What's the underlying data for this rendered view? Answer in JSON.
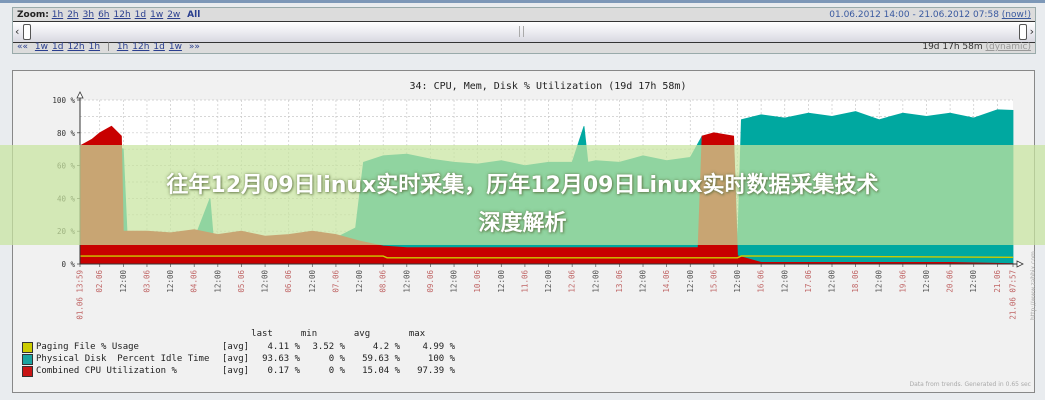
{
  "zoom_bar": {
    "label": "Zoom:",
    "options": [
      "1h",
      "2h",
      "3h",
      "6h",
      "12h",
      "1d",
      "1w",
      "2w"
    ],
    "selected": "All",
    "period_from": "01.06.2012 14:00",
    "period_sep": "-",
    "period_to": "21.06.2012 07:58",
    "now": "(now!)",
    "nav_back": "«",
    "nav_fwd": "»»",
    "nav_back_prefix": "««",
    "nav_back_options": [
      "1w",
      "1d",
      "12h",
      "1h"
    ],
    "nav_sep": "|",
    "nav_fwd_options": [
      "1h",
      "12h",
      "1d",
      "1w"
    ],
    "duration": "19d 17h 58m",
    "mode": "(dynamic)"
  },
  "chart_data": {
    "type": "area",
    "title": "34: CPU, Mem, Disk % Utilization (19d 17h 58m)",
    "xlim": [
      "2012-06-01 13:59",
      "2012-06-21 07:57"
    ],
    "ylim": [
      0,
      100
    ],
    "y_ticks": [
      "0 %",
      "20 %",
      "40 %",
      "60 %",
      "80 %",
      "100 %"
    ],
    "grid": true,
    "x_ticks": [
      {
        "label": "01.06 13:59",
        "time": "2012-06-01 13:59",
        "kind": "date"
      },
      {
        "label": "02.06",
        "time": "2012-06-02 00:00",
        "kind": "date"
      },
      {
        "label": "12:00",
        "time": "2012-06-02 12:00",
        "kind": "time"
      },
      {
        "label": "03.06",
        "time": "2012-06-03 00:00",
        "kind": "date"
      },
      {
        "label": "12:00",
        "time": "2012-06-03 12:00",
        "kind": "time"
      },
      {
        "label": "04.06",
        "time": "2012-06-04 00:00",
        "kind": "date"
      },
      {
        "label": "12:00",
        "time": "2012-06-04 12:00",
        "kind": "time"
      },
      {
        "label": "05.06",
        "time": "2012-06-05 00:00",
        "kind": "date"
      },
      {
        "label": "12:00",
        "time": "2012-06-05 12:00",
        "kind": "time"
      },
      {
        "label": "06.06",
        "time": "2012-06-06 00:00",
        "kind": "date"
      },
      {
        "label": "12:00",
        "time": "2012-06-06 12:00",
        "kind": "time"
      },
      {
        "label": "07.06",
        "time": "2012-06-07 00:00",
        "kind": "date"
      },
      {
        "label": "12:00",
        "time": "2012-06-07 12:00",
        "kind": "time"
      },
      {
        "label": "08.06",
        "time": "2012-06-08 00:00",
        "kind": "date"
      },
      {
        "label": "12:00",
        "time": "2012-06-08 12:00",
        "kind": "time"
      },
      {
        "label": "09.06",
        "time": "2012-06-09 00:00",
        "kind": "date"
      },
      {
        "label": "12:00",
        "time": "2012-06-09 12:00",
        "kind": "time"
      },
      {
        "label": "10.06",
        "time": "2012-06-10 00:00",
        "kind": "date"
      },
      {
        "label": "12:00",
        "time": "2012-06-10 12:00",
        "kind": "time"
      },
      {
        "label": "11.06",
        "time": "2012-06-11 00:00",
        "kind": "date"
      },
      {
        "label": "12:00",
        "time": "2012-06-11 12:00",
        "kind": "time"
      },
      {
        "label": "12.06",
        "time": "2012-06-12 00:00",
        "kind": "date"
      },
      {
        "label": "12:00",
        "time": "2012-06-12 12:00",
        "kind": "time"
      },
      {
        "label": "13.06",
        "time": "2012-06-13 00:00",
        "kind": "date"
      },
      {
        "label": "12:00",
        "time": "2012-06-13 12:00",
        "kind": "time"
      },
      {
        "label": "14.06",
        "time": "2012-06-14 00:00",
        "kind": "date"
      },
      {
        "label": "12:00",
        "time": "2012-06-14 12:00",
        "kind": "time"
      },
      {
        "label": "15.06",
        "time": "2012-06-15 00:00",
        "kind": "date"
      },
      {
        "label": "12:00",
        "time": "2012-06-15 12:00",
        "kind": "time"
      },
      {
        "label": "16.06",
        "time": "2012-06-16 00:00",
        "kind": "date"
      },
      {
        "label": "12:00",
        "time": "2012-06-16 12:00",
        "kind": "time"
      },
      {
        "label": "17.06",
        "time": "2012-06-17 00:00",
        "kind": "date"
      },
      {
        "label": "12:00",
        "time": "2012-06-17 12:00",
        "kind": "time"
      },
      {
        "label": "18.06",
        "time": "2012-06-18 00:00",
        "kind": "date"
      },
      {
        "label": "12:00",
        "time": "2012-06-18 12:00",
        "kind": "time"
      },
      {
        "label": "19.06",
        "time": "2012-06-19 00:00",
        "kind": "date"
      },
      {
        "label": "12:00",
        "time": "2012-06-19 12:00",
        "kind": "time"
      },
      {
        "label": "20.06",
        "time": "2012-06-20 00:00",
        "kind": "date"
      },
      {
        "label": "12:00",
        "time": "2012-06-20 12:00",
        "kind": "time"
      },
      {
        "label": "21.06",
        "time": "2012-06-21 00:00",
        "kind": "date"
      },
      {
        "label": "21.06 07:57",
        "time": "2012-06-21 07:57",
        "kind": "date"
      }
    ],
    "series": [
      {
        "name": "Physical Disk  Percent Idle Time",
        "color": "#00a8a0",
        "style": "area",
        "points": [
          [
            "2012-06-01 13:59",
            70
          ],
          [
            "2012-06-01 20:00",
            66
          ],
          [
            "2012-06-02 00:00",
            72
          ],
          [
            "2012-06-02 06:00",
            74
          ],
          [
            "2012-06-02 12:00",
            70
          ],
          [
            "2012-06-02 14:00",
            16
          ],
          [
            "2012-06-03 00:00",
            14
          ],
          [
            "2012-06-03 12:00",
            12
          ],
          [
            "2012-06-04 00:00",
            15
          ],
          [
            "2012-06-04 08:00",
            40
          ],
          [
            "2012-06-04 10:00",
            12
          ],
          [
            "2012-06-04 12:00",
            12
          ],
          [
            "2012-06-05 00:00",
            14
          ],
          [
            "2012-06-05 12:00",
            10
          ],
          [
            "2012-06-06 00:00",
            12
          ],
          [
            "2012-06-06 12:00",
            14
          ],
          [
            "2012-06-07 00:00",
            16
          ],
          [
            "2012-06-07 10:00",
            22
          ],
          [
            "2012-06-07 14:00",
            62
          ],
          [
            "2012-06-08 00:00",
            66
          ],
          [
            "2012-06-08 12:00",
            67
          ],
          [
            "2012-06-09 00:00",
            64
          ],
          [
            "2012-06-09 12:00",
            62
          ],
          [
            "2012-06-10 00:00",
            61
          ],
          [
            "2012-06-10 12:00",
            63
          ],
          [
            "2012-06-11 00:00",
            60
          ],
          [
            "2012-06-11 12:00",
            62
          ],
          [
            "2012-06-12 00:00",
            62
          ],
          [
            "2012-06-12 06:00",
            84
          ],
          [
            "2012-06-12 08:00",
            62
          ],
          [
            "2012-06-12 12:00",
            63
          ],
          [
            "2012-06-13 00:00",
            62
          ],
          [
            "2012-06-13 12:00",
            66
          ],
          [
            "2012-06-14 00:00",
            63
          ],
          [
            "2012-06-14 12:00",
            65
          ],
          [
            "2012-06-14 18:00",
            78
          ],
          [
            "2012-06-15 00:00",
            79
          ],
          [
            "2012-06-15 10:00",
            77
          ],
          [
            "2012-06-15 12:00",
            10
          ],
          [
            "2012-06-15 14:00",
            88
          ],
          [
            "2012-06-16 00:00",
            91
          ],
          [
            "2012-06-16 12:00",
            89
          ],
          [
            "2012-06-17 00:00",
            92
          ],
          [
            "2012-06-17 12:00",
            90
          ],
          [
            "2012-06-18 00:00",
            93
          ],
          [
            "2012-06-18 12:00",
            88
          ],
          [
            "2012-06-19 00:00",
            92
          ],
          [
            "2012-06-19 12:00",
            90
          ],
          [
            "2012-06-20 00:00",
            92
          ],
          [
            "2012-06-20 12:00",
            89
          ],
          [
            "2012-06-21 00:00",
            94
          ],
          [
            "2012-06-21 07:57",
            93.63
          ]
        ]
      },
      {
        "name": "Combined CPU Utilization %",
        "color": "#c80000",
        "style": "area",
        "points": [
          [
            "2012-06-01 13:59",
            72
          ],
          [
            "2012-06-01 20:00",
            76
          ],
          [
            "2012-06-02 00:00",
            80
          ],
          [
            "2012-06-02 06:00",
            84
          ],
          [
            "2012-06-02 11:00",
            78
          ],
          [
            "2012-06-02 12:00",
            20
          ],
          [
            "2012-06-03 00:00",
            20
          ],
          [
            "2012-06-03 12:00",
            19
          ],
          [
            "2012-06-04 00:00",
            21
          ],
          [
            "2012-06-04 12:00",
            18
          ],
          [
            "2012-06-05 00:00",
            20
          ],
          [
            "2012-06-05 12:00",
            17
          ],
          [
            "2012-06-06 00:00",
            18
          ],
          [
            "2012-06-06 12:00",
            20
          ],
          [
            "2012-06-07 00:00",
            18
          ],
          [
            "2012-06-07 12:00",
            14
          ],
          [
            "2012-06-08 00:00",
            11
          ],
          [
            "2012-06-08 12:00",
            10
          ],
          [
            "2012-06-09 00:00",
            10
          ],
          [
            "2012-06-10 00:00",
            10
          ],
          [
            "2012-06-11 00:00",
            10
          ],
          [
            "2012-06-12 00:00",
            10
          ],
          [
            "2012-06-13 00:00",
            10
          ],
          [
            "2012-06-14 00:00",
            10
          ],
          [
            "2012-06-14 16:00",
            10
          ],
          [
            "2012-06-14 18:00",
            78
          ],
          [
            "2012-06-15 00:00",
            80
          ],
          [
            "2012-06-15 10:00",
            78
          ],
          [
            "2012-06-15 12:00",
            5
          ],
          [
            "2012-06-16 00:00",
            1
          ],
          [
            "2012-06-18 00:00",
            1
          ],
          [
            "2012-06-20 00:00",
            1
          ],
          [
            "2012-06-21 07:57",
            0.17
          ]
        ]
      },
      {
        "name": "Paging File % Usage",
        "color": "#cccc00",
        "style": "line",
        "points": [
          [
            "2012-06-01 13:59",
            4.8
          ],
          [
            "2012-06-08 00:00",
            4.8
          ],
          [
            "2012-06-08 02:00",
            3.8
          ],
          [
            "2012-06-15 12:00",
            3.8
          ],
          [
            "2012-06-15 14:00",
            4.9
          ],
          [
            "2012-06-21 07:57",
            4.11
          ]
        ]
      }
    ],
    "legend": {
      "headers": [
        "last",
        "min",
        "avg",
        "max"
      ],
      "rows": [
        {
          "name": "Paging File % Usage",
          "color": "#cccc00",
          "func": "[avg]",
          "last": "4.11 %",
          "min": "3.52 %",
          "avg": "4.2 %",
          "max": "4.99 %"
        },
        {
          "name": "Physical Disk  Percent Idle Time",
          "color": "#1aa3a0",
          "func": "[avg]",
          "last": "93.63 %",
          "min": "0 %",
          "avg": "59.63 %",
          "max": "100 %"
        },
        {
          "name": "Combined CPU Utilization %",
          "color": "#c81414",
          "func": "[avg]",
          "last": "0.17 %",
          "min": "0 %",
          "avg": "15.04 %",
          "max": "97.39 %"
        }
      ]
    },
    "footer": "Data from trends. Generated in 0.65 sec",
    "watermark_url": "http://www.zabbix.com"
  },
  "banner": {
    "line1": "往年12月09日linux实时采集，历年12月09日Linux实时数据采集技术",
    "line2": "深度解析"
  }
}
